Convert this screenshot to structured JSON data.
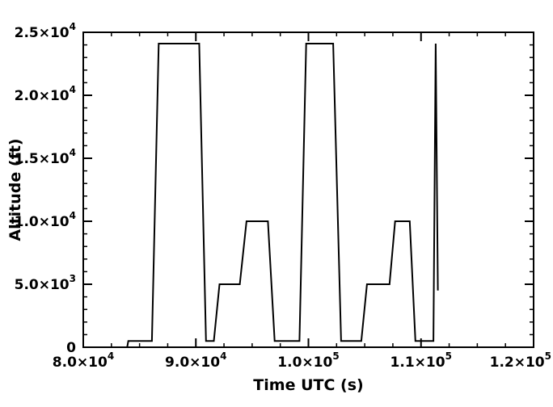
{
  "figure": {
    "background": "#ffffff",
    "line_color": "#000000",
    "axis_color": "#000000"
  },
  "chart_data": {
    "type": "line",
    "title": "",
    "xlabel": "Time UTC (s)",
    "ylabel": "Altitude (ft)",
    "xlim": [
      80000,
      120000
    ],
    "ylim": [
      0,
      25000
    ],
    "grid": false,
    "legend": false,
    "x_ticks": [
      {
        "value": 80000,
        "label": "8.0×10",
        "exp": "4"
      },
      {
        "value": 90000,
        "label": "9.0×10",
        "exp": "4"
      },
      {
        "value": 100000,
        "label": "1.0×10",
        "exp": "5"
      },
      {
        "value": 110000,
        "label": "1.1×10",
        "exp": "5"
      },
      {
        "value": 120000,
        "label": "1.2×10",
        "exp": "5"
      }
    ],
    "y_ticks": [
      {
        "value": 0,
        "label": "0",
        "exp": ""
      },
      {
        "value": 5000,
        "label": "5.0×10",
        "exp": "3"
      },
      {
        "value": 10000,
        "label": "1.0×10",
        "exp": "4"
      },
      {
        "value": 15000,
        "label": "1.5×10",
        "exp": "4"
      },
      {
        "value": 20000,
        "label": "2.0×10",
        "exp": "4"
      },
      {
        "value": 25000,
        "label": "2.5×10",
        "exp": "4"
      }
    ],
    "x_minor_step": 2500,
    "y_minor_step": 1000,
    "series": [
      {
        "name": "altitude",
        "points": [
          [
            83900,
            0
          ],
          [
            84000,
            500
          ],
          [
            86100,
            500
          ],
          [
            86700,
            24100
          ],
          [
            90300,
            24100
          ],
          [
            90900,
            500
          ],
          [
            91600,
            500
          ],
          [
            92100,
            5000
          ],
          [
            93900,
            5000
          ],
          [
            94500,
            10000
          ],
          [
            96400,
            10000
          ],
          [
            97000,
            500
          ],
          [
            99200,
            500
          ],
          [
            99800,
            24100
          ],
          [
            102200,
            24100
          ],
          [
            102900,
            500
          ],
          [
            104700,
            500
          ],
          [
            105200,
            5000
          ],
          [
            107200,
            5000
          ],
          [
            107700,
            10000
          ],
          [
            109000,
            10000
          ],
          [
            109500,
            500
          ],
          [
            111100,
            500
          ],
          [
            111300,
            24100
          ],
          [
            111500,
            4500
          ]
        ]
      }
    ]
  }
}
